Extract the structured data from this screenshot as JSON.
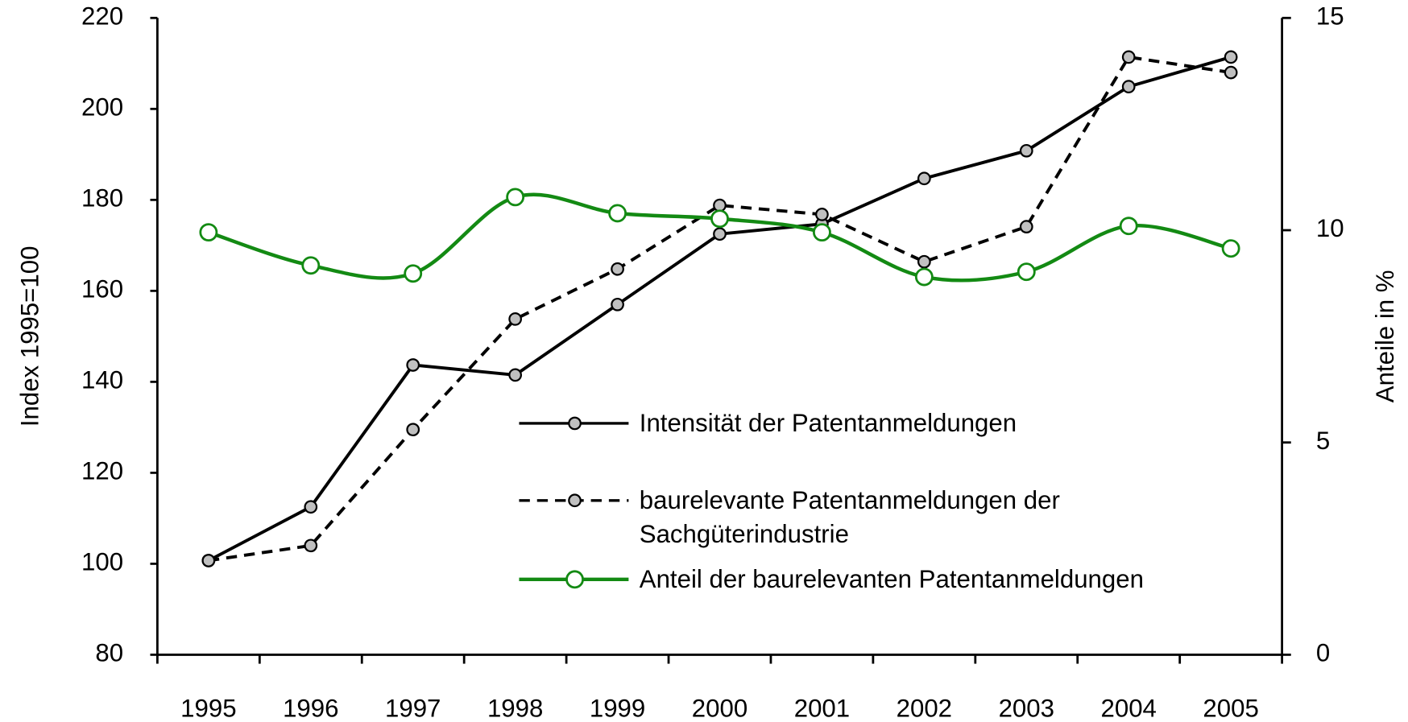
{
  "chart_data": {
    "type": "line",
    "y_label": "Index 1995=100",
    "y2_label": "Anteile in %",
    "categories": [
      "1995",
      "1996",
      "1997",
      "1998",
      "1999",
      "2000",
      "2001",
      "2002",
      "2003",
      "2004",
      "2005"
    ],
    "series": [
      {
        "name": "Intensität der Patentanmeldungen",
        "color": "#000000",
        "dash": false,
        "smooth": false,
        "values": [
          100.7,
          112.5,
          143.7,
          141.5,
          157,
          172.5,
          174.7,
          184.7,
          190.8,
          204.9,
          211.4
        ]
      },
      {
        "name": "baurelevante Patentanmeldungen der Sachgüterindustrie",
        "color": "#000000",
        "dash": true,
        "smooth": false,
        "values": [
          100.7,
          104,
          129.5,
          153.8,
          164.8,
          178.8,
          176.8,
          166.4,
          174.1,
          211.4,
          208
        ]
      },
      {
        "name": "Anteil der baurelevanten Patentanmeldungen",
        "color": "#138a13",
        "dash": false,
        "smooth": true,
        "axis": "y2",
        "values": [
          9.95,
          9.17,
          8.98,
          10.78,
          10.4,
          10.27,
          9.95,
          8.9,
          9.02,
          10.1,
          9.57
        ]
      }
    ],
    "ylim": [
      80,
      220
    ],
    "yticks": [
      80,
      100,
      120,
      140,
      160,
      180,
      200,
      220
    ],
    "y2lim": [
      0,
      15
    ],
    "y2ticks": [
      0,
      5,
      10,
      15
    ]
  }
}
